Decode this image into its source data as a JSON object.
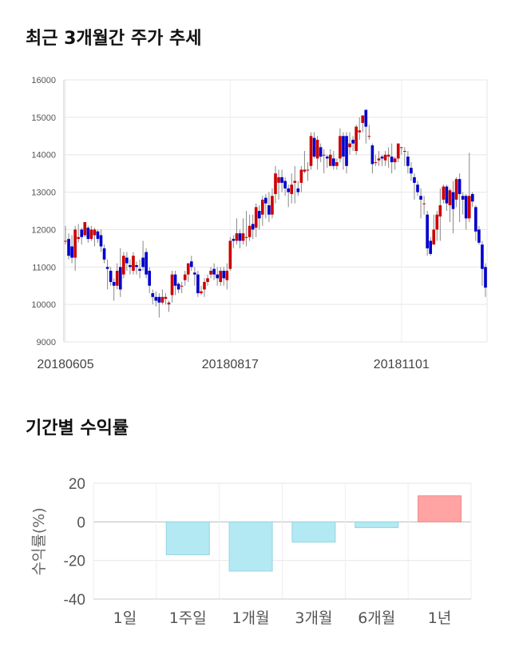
{
  "titles": {
    "price_trend": "최근 3개월간 주가 추세",
    "period_returns": "기간별 수익률"
  },
  "colors": {
    "up": "#cc0000",
    "down": "#0000cc",
    "neg_bar": "#b3e9f2",
    "pos_bar": "#ffa3a3"
  },
  "chart_data": [
    {
      "type": "candlestick",
      "title": "최근 3개월간 주가 추세",
      "ylim": [
        9000,
        16000
      ],
      "y_ticks": [
        "16000",
        "15000",
        "14000",
        "13000",
        "12000",
        "11000",
        "10000",
        "9000"
      ],
      "x_ticks": [
        {
          "index": 0,
          "label": "20180605"
        },
        {
          "index": 51,
          "label": "20180817"
        },
        {
          "index": 104,
          "label": "20181101"
        }
      ],
      "grid": true,
      "candles": [
        [
          11700,
          11700,
          12100,
          11600
        ],
        [
          11750,
          11300,
          11900,
          11200
        ],
        [
          11550,
          11250,
          11850,
          11100
        ],
        [
          11250,
          12000,
          12100,
          10900
        ],
        [
          11750,
          11800,
          12150,
          11650
        ],
        [
          12000,
          11800,
          12050,
          11600
        ],
        [
          11850,
          12200,
          12200,
          11800
        ],
        [
          12050,
          11750,
          12100,
          11650
        ],
        [
          11750,
          12000,
          12100,
          11700
        ],
        [
          11850,
          12000,
          12050,
          11550
        ],
        [
          11950,
          11750,
          12000,
          11650
        ],
        [
          11850,
          11550,
          12000,
          11400
        ],
        [
          11500,
          11200,
          11600,
          11100
        ],
        [
          11000,
          10950,
          11200,
          10400
        ],
        [
          10900,
          10600,
          11000,
          10500
        ],
        [
          10600,
          10500,
          10700,
          10100
        ],
        [
          10500,
          10900,
          11100,
          10400
        ],
        [
          11000,
          10400,
          11500,
          10200
        ],
        [
          10800,
          11300,
          11400,
          10700
        ],
        [
          11250,
          11100,
          11400,
          10900
        ],
        [
          11050,
          11000,
          11200,
          10800
        ],
        [
          10900,
          11300,
          11400,
          10800
        ],
        [
          11050,
          11000,
          11150,
          10800
        ],
        [
          10950,
          10900,
          11200,
          10700
        ],
        [
          11250,
          11000,
          11700,
          10900
        ],
        [
          11400,
          10800,
          11500,
          10700
        ],
        [
          10900,
          10500,
          11000,
          10300
        ],
        [
          10300,
          10200,
          10400,
          10000
        ],
        [
          10200,
          10100,
          10350,
          9950
        ],
        [
          10200,
          10050,
          10300,
          9650
        ],
        [
          10050,
          10200,
          10400,
          10000
        ],
        [
          10150,
          10200,
          10300,
          10000
        ],
        [
          10000,
          10050,
          10100,
          9800
        ],
        [
          10250,
          10800,
          10900,
          10050
        ],
        [
          10800,
          10500,
          10900,
          10250
        ],
        [
          10550,
          10400,
          10600,
          10300
        ],
        [
          10500,
          10500,
          10600,
          10300
        ],
        [
          10650,
          10800,
          10900,
          10500
        ],
        [
          10800,
          11100,
          11100,
          10600
        ],
        [
          11150,
          11000,
          11300,
          10900
        ],
        [
          10850,
          10800,
          11000,
          10500
        ],
        [
          10800,
          10300,
          10900,
          10200
        ],
        [
          10300,
          10350,
          10500,
          10250
        ],
        [
          10400,
          10600,
          10700,
          10200
        ],
        [
          10600,
          10700,
          10800,
          10500
        ],
        [
          10800,
          10900,
          11000,
          10700
        ],
        [
          10950,
          10800,
          11100,
          10650
        ],
        [
          10800,
          10700,
          11000,
          10500
        ],
        [
          10600,
          10900,
          11000,
          10500
        ],
        [
          10900,
          10700,
          11000,
          10500
        ],
        [
          10650,
          10900,
          11100,
          10400
        ],
        [
          10950,
          11700,
          11800,
          10900
        ],
        [
          11750,
          11700,
          11850,
          11500
        ],
        [
          11700,
          11900,
          12300,
          11600
        ],
        [
          11900,
          11700,
          12000,
          11500
        ],
        [
          11700,
          11900,
          12300,
          11600
        ],
        [
          11800,
          11800,
          12500,
          11550
        ],
        [
          11800,
          12100,
          12400,
          11700
        ],
        [
          12150,
          12000,
          12400,
          11750
        ],
        [
          12050,
          12600,
          12700,
          11800
        ],
        [
          12500,
          12300,
          12650,
          12000
        ],
        [
          12400,
          12800,
          12900,
          12100
        ],
        [
          12850,
          12700,
          12950,
          12300
        ],
        [
          12650,
          12400,
          13000,
          12200
        ],
        [
          12400,
          12900,
          13100,
          12300
        ],
        [
          12950,
          13500,
          13700,
          12700
        ],
        [
          13250,
          13400,
          13600,
          12800
        ],
        [
          13400,
          13250,
          13600,
          13000
        ],
        [
          13300,
          13100,
          13400,
          12900
        ],
        [
          13100,
          13000,
          13200,
          12600
        ],
        [
          12950,
          13200,
          13500,
          12700
        ],
        [
          13250,
          13300,
          13700,
          12700
        ],
        [
          13100,
          13000,
          13300,
          12900
        ],
        [
          13250,
          13600,
          13700,
          13000
        ],
        [
          13550,
          13600,
          14100,
          13500
        ],
        [
          13600,
          13600,
          13800,
          13300
        ],
        [
          13700,
          14500,
          14600,
          13600
        ],
        [
          14450,
          13950,
          14600,
          13900
        ],
        [
          13900,
          14400,
          14500,
          13600
        ],
        [
          14200,
          13950,
          14300,
          13800
        ],
        [
          14000,
          14000,
          14150,
          13500
        ],
        [
          13950,
          13900,
          14000,
          13650
        ],
        [
          13700,
          14000,
          14150,
          13700
        ],
        [
          13900,
          13700,
          14100,
          13600
        ],
        [
          13700,
          13800,
          13900,
          13600
        ],
        [
          13900,
          14500,
          14700,
          13800
        ],
        [
          14500,
          13950,
          14600,
          13600
        ],
        [
          14500,
          13700,
          14600,
          13500
        ],
        [
          14200,
          14300,
          14600,
          14000
        ],
        [
          14400,
          14300,
          14500,
          14100
        ],
        [
          14100,
          14750,
          14800,
          14000
        ],
        [
          14600,
          14650,
          15000,
          14400
        ],
        [
          14850,
          15050,
          15050,
          14600
        ],
        [
          15200,
          14750,
          15200,
          14300
        ],
        [
          14500,
          14500,
          14800,
          14400
        ],
        [
          14250,
          13750,
          14300,
          13500
        ],
        [
          13800,
          13800,
          14000,
          13700
        ],
        [
          13850,
          13900,
          14100,
          13700
        ],
        [
          13950,
          13900,
          14000,
          13700
        ],
        [
          13850,
          14000,
          14100,
          13700
        ],
        [
          13950,
          14000,
          14200,
          13650
        ],
        [
          13950,
          13800,
          14300,
          13500
        ],
        [
          13800,
          13900,
          13950,
          13600
        ],
        [
          13900,
          14300,
          14300,
          13800
        ],
        [
          14200,
          14200,
          14200,
          14000
        ],
        [
          14100,
          14100,
          14200,
          13700
        ],
        [
          13950,
          13700,
          14100,
          13500
        ],
        [
          13650,
          13500,
          13800,
          13300
        ],
        [
          13400,
          13250,
          13500,
          12800
        ],
        [
          13200,
          13000,
          13300,
          12900
        ],
        [
          12900,
          12800,
          13100,
          12300
        ],
        [
          12700,
          12700,
          12900,
          12400
        ],
        [
          12400,
          11500,
          12500,
          11300
        ],
        [
          11700,
          11350,
          11800,
          11300
        ],
        [
          11600,
          12000,
          12400,
          11600
        ],
        [
          12000,
          12400,
          12500,
          11700
        ],
        [
          12350,
          12650,
          13100,
          11700
        ],
        [
          12800,
          13150,
          13200,
          12700
        ],
        [
          13150,
          12700,
          13200,
          12500
        ],
        [
          12650,
          13050,
          13100,
          12200
        ],
        [
          13000,
          12550,
          13300,
          11900
        ],
        [
          12800,
          13350,
          13400,
          12600
        ],
        [
          13350,
          12950,
          13500,
          12200
        ],
        [
          12900,
          12800,
          13000,
          12400
        ],
        [
          12900,
          12300,
          12950,
          12000
        ],
        [
          12300,
          12900,
          14050,
          12200
        ],
        [
          12950,
          12750,
          13000,
          12600
        ],
        [
          12600,
          11950,
          12650,
          11700
        ],
        [
          12000,
          11650,
          12100,
          11600
        ],
        [
          11600,
          10950,
          11700,
          10500
        ],
        [
          11000,
          10450,
          11100,
          10200
        ]
      ]
    },
    {
      "type": "bar",
      "title": "기간별 수익률",
      "ylabel": "수익률(%)",
      "ylim": [
        -40,
        20
      ],
      "y_ticks": [
        "20",
        "0",
        "-20",
        "-40"
      ],
      "categories": [
        "1일",
        "1주일",
        "1개월",
        "3개월",
        "6개월",
        "1년"
      ],
      "values": [
        0,
        -17,
        -25.5,
        -10.5,
        -3,
        13.5
      ],
      "grid": true
    }
  ]
}
